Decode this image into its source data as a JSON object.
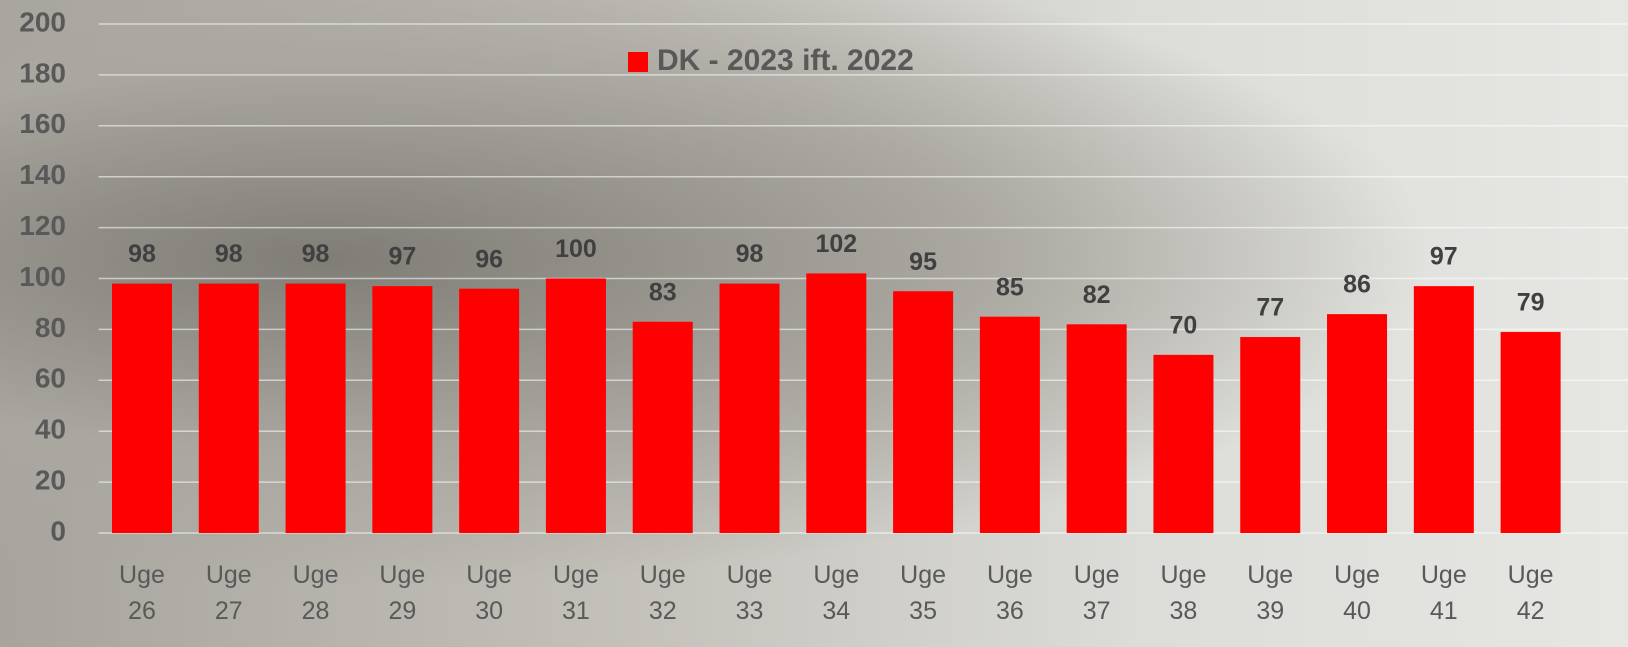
{
  "chart_data": {
    "type": "bar",
    "categories": [
      "Uge 26",
      "Uge 27",
      "Uge 28",
      "Uge 29",
      "Uge 30",
      "Uge 31",
      "Uge 32",
      "Uge 33",
      "Uge 34",
      "Uge 35",
      "Uge 36",
      "Uge 37",
      "Uge 38",
      "Uge 39",
      "Uge 40",
      "Uge 41",
      "Uge 42"
    ],
    "series": [
      {
        "name": "DK - 2023 ift. 2022",
        "color": "#ff0000",
        "values": [
          98,
          98,
          98,
          97,
          96,
          100,
          83,
          98,
          102,
          95,
          85,
          82,
          70,
          77,
          86,
          97,
          79
        ]
      }
    ],
    "ylim": [
      0,
      200
    ],
    "yticks": [
      0,
      20,
      40,
      60,
      80,
      100,
      120,
      140,
      160,
      180,
      200
    ],
    "grid": true,
    "legend": "top"
  }
}
